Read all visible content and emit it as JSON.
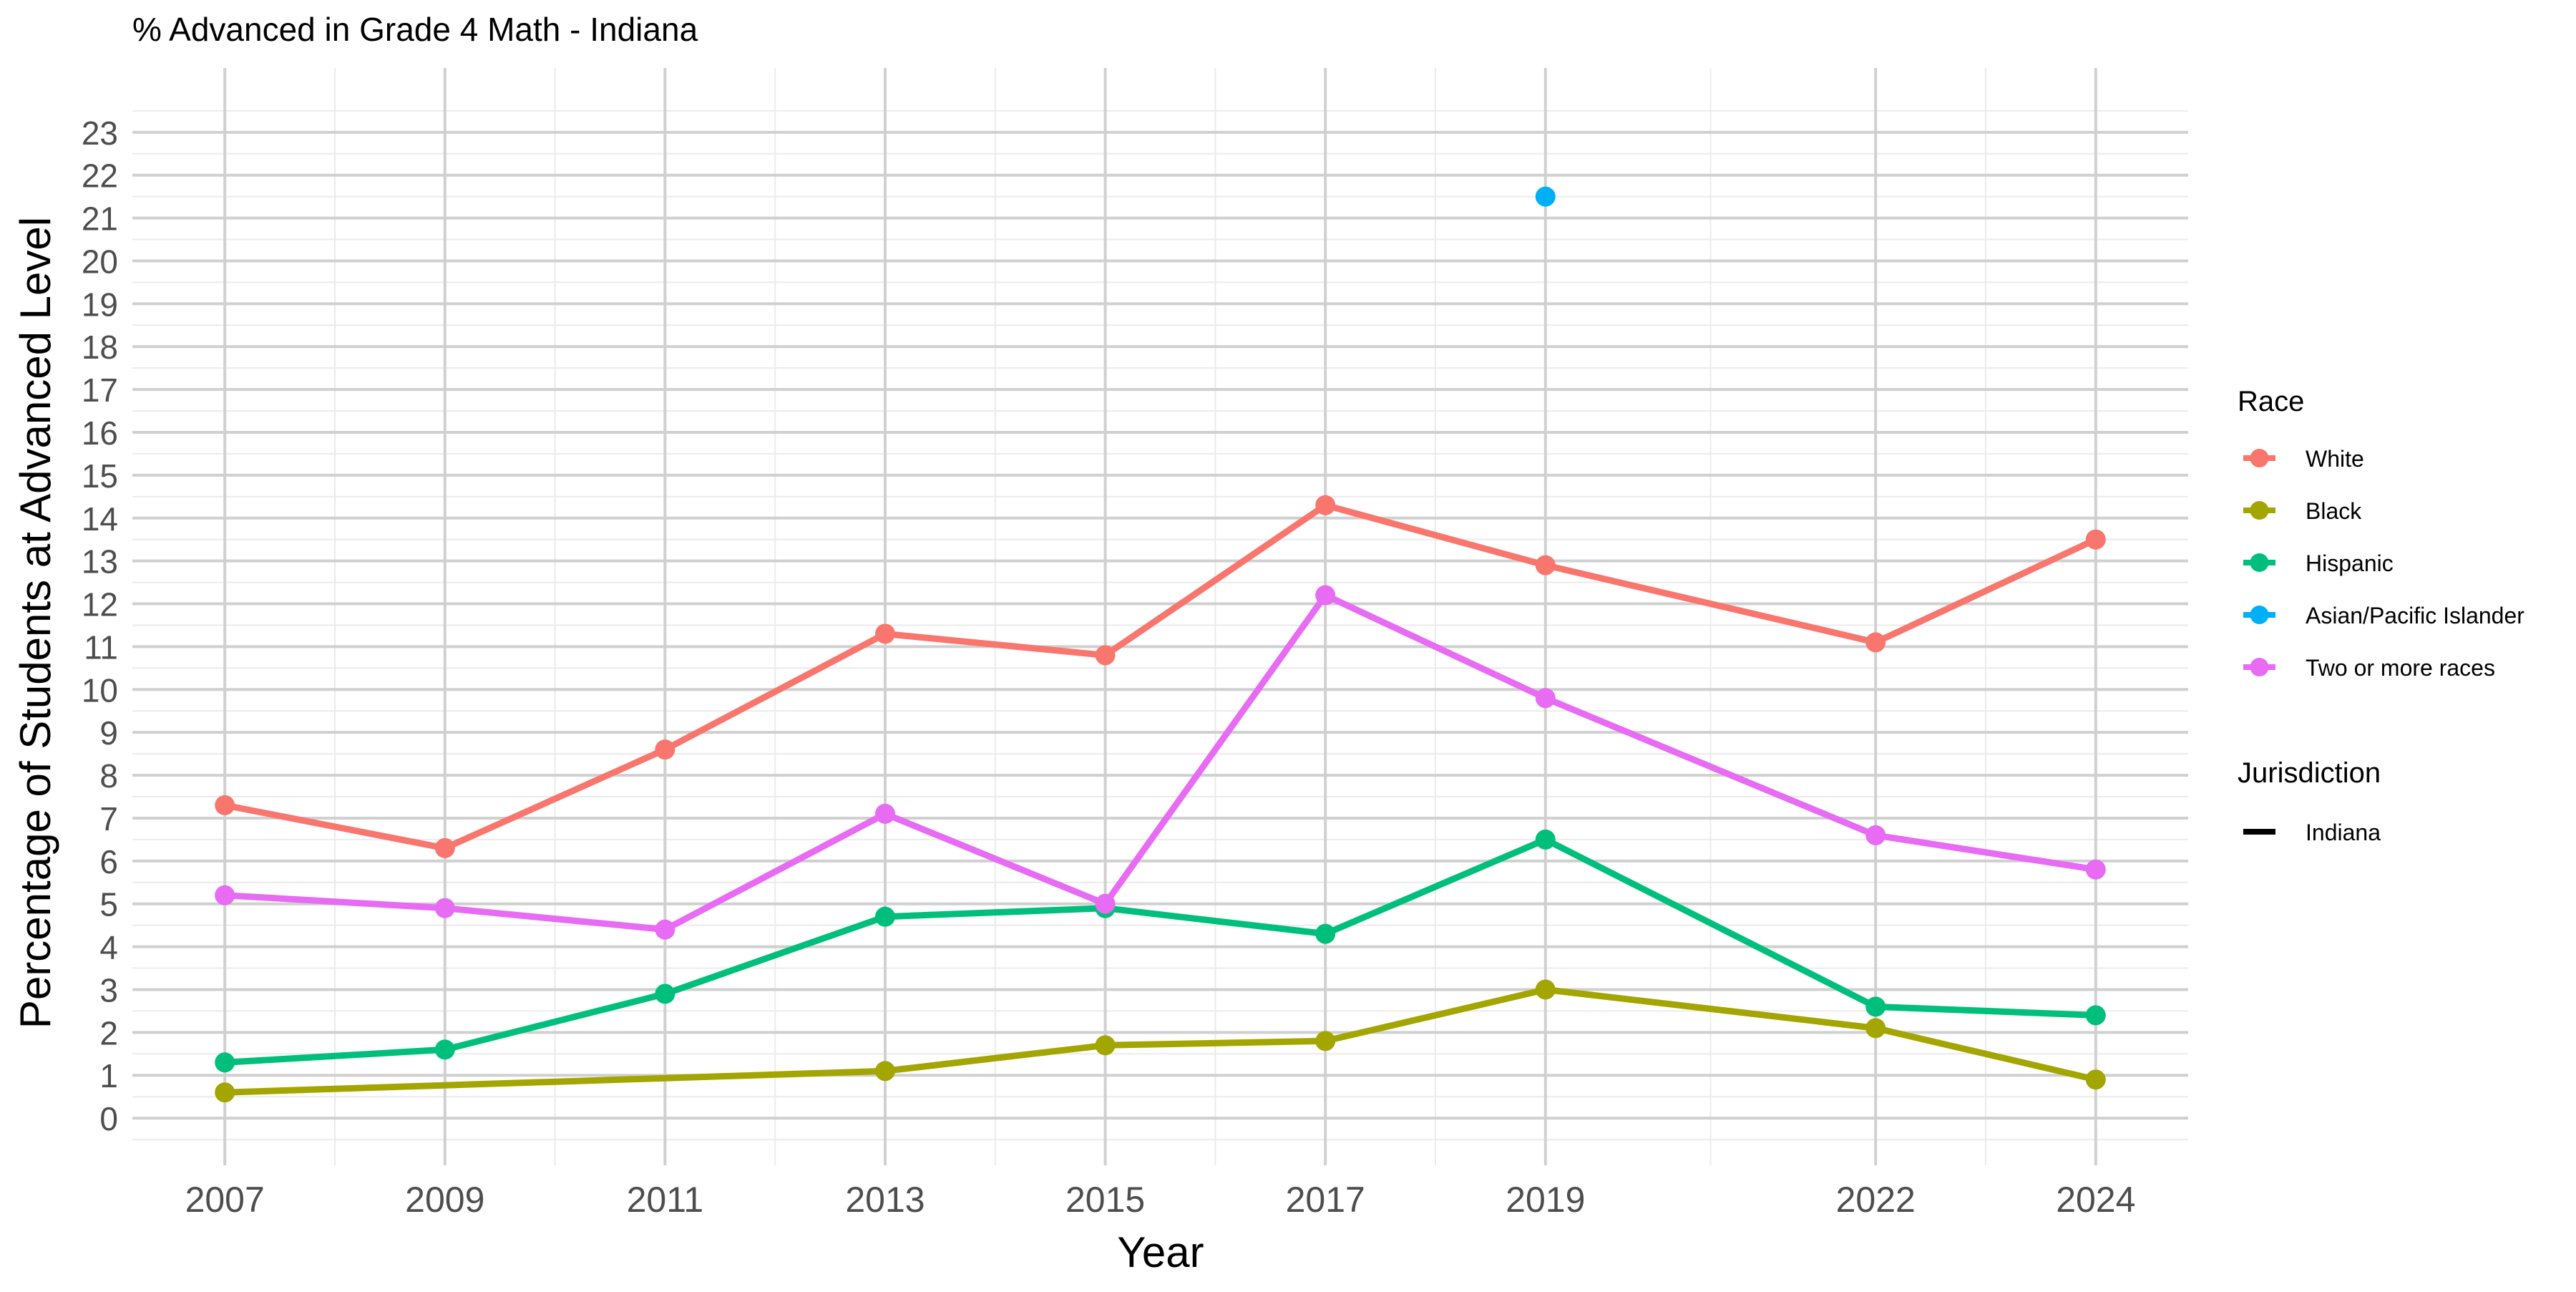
{
  "chart_data": {
    "type": "line",
    "title": "% Advanced in Grade 4 Math - Indiana",
    "xlabel": "Year",
    "ylabel": "Percentage of Students at Advanced Level",
    "x": [
      2007,
      2009,
      2011,
      2013,
      2015,
      2017,
      2019,
      2022,
      2024
    ],
    "x_ticks": [
      "2007",
      "2009",
      "2011",
      "2013",
      "2015",
      "2017",
      "2019",
      "2022",
      "2024"
    ],
    "xlim": [
      2006.16,
      2024.84
    ],
    "ylim": [
      -1.1,
      24.5
    ],
    "y_ticks": [
      0,
      1,
      2,
      3,
      4,
      5,
      6,
      7,
      8,
      9,
      10,
      11,
      12,
      13,
      14,
      15,
      16,
      17,
      18,
      19,
      20,
      21,
      22,
      23
    ],
    "grid": true,
    "legend_position": "right",
    "legend": {
      "race_title": "Race",
      "jurisdiction_title": "Jurisdiction",
      "jurisdiction_items": [
        "Indiana"
      ]
    },
    "series": [
      {
        "name": "White",
        "color": "#F8766D",
        "values": [
          7.3,
          6.3,
          8.6,
          11.3,
          10.8,
          14.3,
          12.9,
          11.1,
          13.5
        ]
      },
      {
        "name": "Black",
        "color": "#A3A500",
        "values": [
          0.6,
          null,
          null,
          1.1,
          1.7,
          1.8,
          3.0,
          2.1,
          0.9
        ]
      },
      {
        "name": "Hispanic",
        "color": "#00BF7D",
        "values": [
          1.3,
          1.6,
          2.9,
          4.7,
          4.9,
          4.3,
          6.5,
          2.6,
          2.4
        ]
      },
      {
        "name": "Asian/Pacific Islander",
        "color": "#00B0F6",
        "values": [
          null,
          null,
          null,
          null,
          null,
          null,
          21.5,
          null,
          null
        ]
      },
      {
        "name": "Two or more races",
        "color": "#E76BF3",
        "values": [
          5.2,
          4.9,
          4.4,
          7.1,
          5.0,
          12.2,
          9.8,
          6.6,
          5.8
        ]
      }
    ]
  }
}
